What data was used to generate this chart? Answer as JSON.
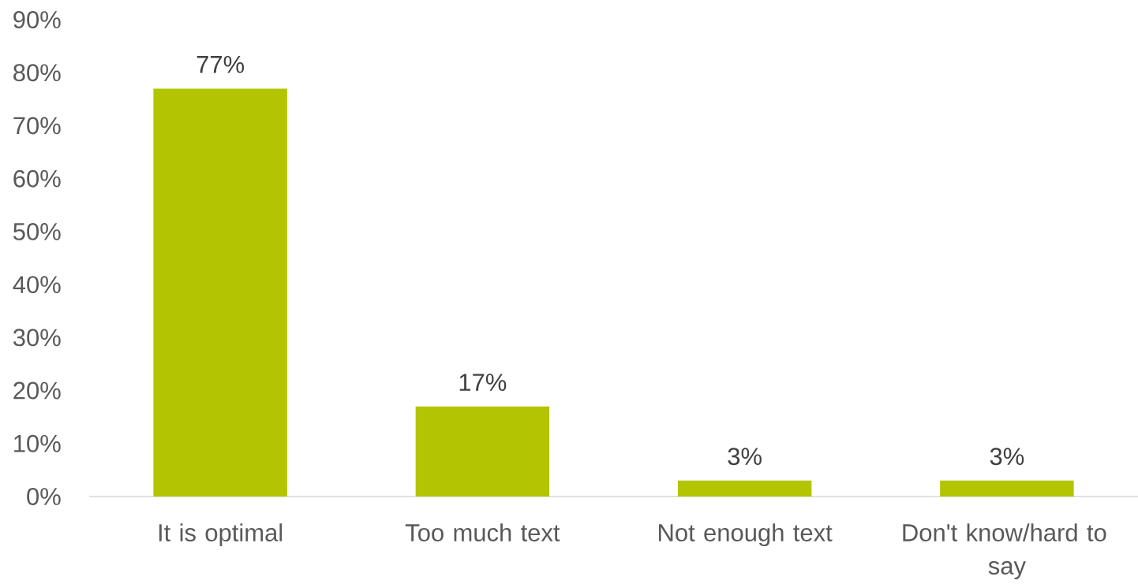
{
  "chart_data": {
    "type": "bar",
    "categories": [
      "It is optimal",
      "Too much text",
      "Not enough text",
      "Don't know/hard to say"
    ],
    "values": [
      77,
      17,
      3,
      3
    ],
    "value_labels": [
      "77%",
      "17%",
      "3%",
      "3%"
    ],
    "color": "#b3c400",
    "ylim": [
      0,
      90
    ],
    "yticks": [
      {
        "value": 0,
        "label": "0%"
      },
      {
        "value": 10,
        "label": "10%"
      },
      {
        "value": 20,
        "label": "20%"
      },
      {
        "value": 30,
        "label": "30%"
      },
      {
        "value": 40,
        "label": "40%"
      },
      {
        "value": 50,
        "label": "50%"
      },
      {
        "value": 60,
        "label": "60%"
      },
      {
        "value": 70,
        "label": "70%"
      },
      {
        "value": 80,
        "label": "80%"
      },
      {
        "value": 90,
        "label": "90%"
      }
    ]
  }
}
